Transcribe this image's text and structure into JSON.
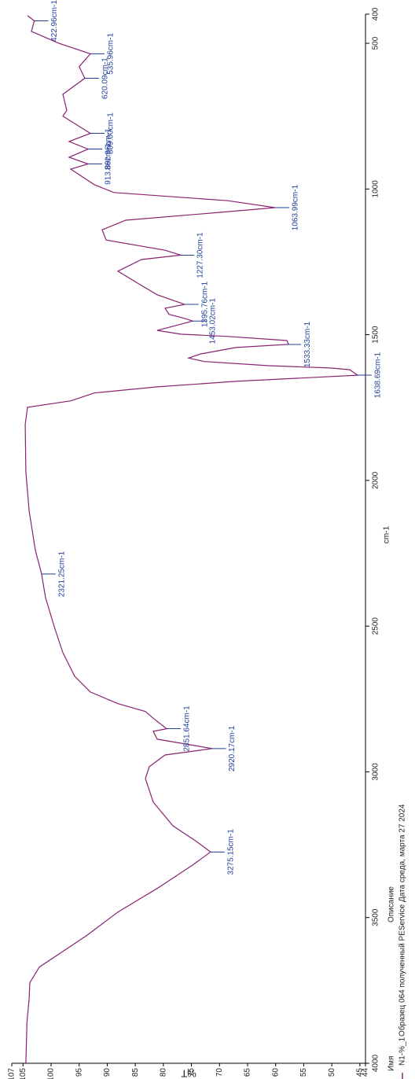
{
  "chart_data": {
    "type": "line",
    "x_label": "cm-1",
    "y_label": "%T",
    "xlim": [
      400,
      4000
    ],
    "xticks": [
      400,
      500,
      1000,
      1500,
      2000,
      2500,
      3000,
      3500,
      4000
    ],
    "ylim": [
      44,
      107
    ],
    "yticks": [
      107,
      105,
      100,
      95,
      90,
      85,
      80,
      75,
      70,
      65,
      60,
      55,
      50,
      45,
      44
    ],
    "legend_header": [
      "Имя",
      "Описание"
    ],
    "series": [
      {
        "name": "N1-%_1",
        "description": "Образец 064 полученный PEService Дата среда, марта 27 2024",
        "color": "#8a2270",
        "x": [
          405,
          423,
          459,
          500,
          536,
          580,
          620,
          675,
          730,
          750,
          809,
          837,
          863,
          891,
          914,
          932,
          985,
          1012,
          1040,
          1064,
          1080,
          1107,
          1140,
          1175,
          1210,
          1227,
          1242,
          1282,
          1323,
          1363,
          1396,
          1409,
          1430,
          1444,
          1453,
          1471,
          1485,
          1498,
          1506,
          1520,
          1533,
          1544,
          1566,
          1580,
          1592,
          1606,
          1614,
          1620,
          1639,
          1660,
          1679,
          1700,
          1727,
          1749,
          1808,
          1970,
          2105,
          2240,
          2321,
          2402,
          2510,
          2591,
          2672,
          2726,
          2766,
          2793,
          2816,
          2852,
          2861,
          2888,
          2920,
          2942,
          2982,
          3023,
          3104,
          3185,
          3239,
          3275,
          3320,
          3400,
          3481,
          3562,
          3616,
          3670,
          3724,
          3778,
          3859,
          4000
        ],
        "values": [
          104.2,
          103,
          103.5,
          98.6,
          93,
          95,
          94,
          97.9,
          97.2,
          97.9,
          93,
          96.8,
          93.4,
          96.8,
          93.4,
          96.5,
          92.3,
          88.8,
          68.5,
          60.1,
          69.9,
          86.7,
          90.9,
          90.2,
          79.7,
          76.9,
          83.9,
          88.1,
          84.6,
          81.1,
          76.2,
          79.7,
          79,
          76.2,
          74.8,
          78.3,
          81.1,
          76.9,
          68.5,
          58,
          57.7,
          67.1,
          73.4,
          75.5,
          72.7,
          61.5,
          50.3,
          46.8,
          45.4,
          67.1,
          81.1,
          92.3,
          96.5,
          104.2,
          104.6,
          104.5,
          103.9,
          102.8,
          101.7,
          101,
          99.3,
          97.9,
          95.8,
          93,
          88.1,
          83.2,
          81.8,
          79.4,
          81.8,
          81.1,
          71.3,
          79.7,
          82.5,
          83.2,
          81.8,
          78.3,
          74.1,
          71.6,
          74.8,
          81.1,
          88.1,
          93.7,
          97.9,
          102.1,
          103.8,
          103.9,
          104.3,
          104.5
        ]
      }
    ],
    "annotations": [
      {
        "value": 422.96,
        "label": "422.96cm-1"
      },
      {
        "value": 535.96,
        "label": "535.96cm-1"
      },
      {
        "value": 620.09,
        "label": "620.09cm-1"
      },
      {
        "value": 809.0,
        "label": "809.00cm-1"
      },
      {
        "value": 862.96,
        "label": "862.96cm-1"
      },
      {
        "value": 913.89,
        "label": "913.89cm-1"
      },
      {
        "value": 1063.99,
        "label": "1063.99cm-1"
      },
      {
        "value": 1227.3,
        "label": "1227.30cm-1"
      },
      {
        "value": 1395.76,
        "label": "1395.76cm-1"
      },
      {
        "value": 1453.02,
        "label": "1453.02cm-1"
      },
      {
        "value": 1533.33,
        "label": "1533.33cm-1"
      },
      {
        "value": 1638.69,
        "label": "1638.69cm-1"
      },
      {
        "value": 2321.25,
        "label": "2321.25cm-1"
      },
      {
        "value": 2851.64,
        "label": "2851.64cm-1"
      },
      {
        "value": 2920.17,
        "label": "2920.17cm-1"
      },
      {
        "value": 3275.15,
        "label": "3275.15cm-1"
      }
    ]
  }
}
